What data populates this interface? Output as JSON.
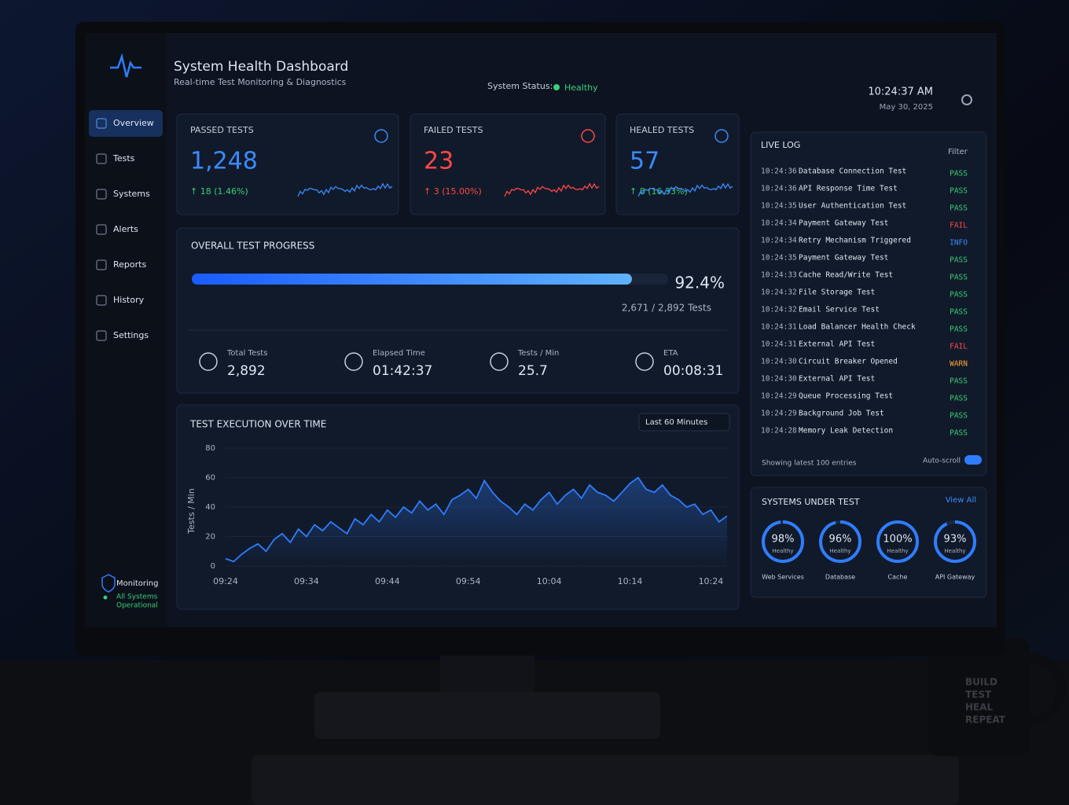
{
  "header": {
    "title": "System Health Dashboard",
    "subtitle": "Real-time Test Monitoring & Diagnostics",
    "status_label": "System Status:",
    "status": "Healthy",
    "time": "10:24:37 AM",
    "date": "May 30, 2025"
  },
  "sidebar": {
    "nav": [
      "Overview",
      "Tests",
      "Systems",
      "Alerts",
      "Reports",
      "History",
      "Settings"
    ],
    "footer_title": "Monitoring",
    "footer_status": [
      "All Systems",
      "Operational"
    ]
  },
  "cards": [
    {
      "title": "PASSED TESTS",
      "value": "1,248",
      "change": "↑ 18 (1.46%)",
      "color": "#3b8bff",
      "change_color": "#3ad07a"
    },
    {
      "title": "FAILED TESTS",
      "value": "23",
      "change": "↑ 3 (15.00%)",
      "color": "#ff4848",
      "change_color": "#ff4848"
    },
    {
      "title": "HEALED TESTS",
      "value": "57",
      "change": "↑ 8 (16.33%)",
      "color": "#3b8bff",
      "change_color": "#3ad07a"
    }
  ],
  "progress": {
    "title": "OVERALL TEST PROGRESS",
    "percent": {
      "value": 92.4,
      "label": "92.4%"
    },
    "detail": "2,671 / 2,892 Tests",
    "stats": [
      {
        "label": "Total Tests",
        "value": "2,892"
      },
      {
        "label": "Elapsed Time",
        "value": "01:42:37"
      },
      {
        "label": "Tests / Min",
        "value": "25.7"
      },
      {
        "label": "ETA",
        "value": "00:08:31"
      }
    ]
  },
  "execution_chart": {
    "type": "line",
    "title": "TEST EXECUTION OVER TIME",
    "range_selector": "Last 60 Minutes",
    "y_label": "Tests / Min",
    "color": "#2f7dff",
    "categories": [
      "09:24",
      null,
      null,
      null,
      null,
      null,
      null,
      null,
      null,
      null,
      "09:34",
      null,
      null,
      null,
      null,
      null,
      null,
      null,
      null,
      null,
      "09:44",
      null,
      null,
      null,
      null,
      null,
      null,
      null,
      null,
      null,
      "09:54",
      null,
      null,
      null,
      null,
      null,
      null,
      null,
      null,
      null,
      "10:04",
      null,
      null,
      null,
      null,
      null,
      null,
      null,
      null,
      null,
      "10:14",
      null,
      null,
      null,
      null,
      null,
      null,
      null,
      null,
      null,
      "10:24",
      null,
      null
    ],
    "values": [
      5,
      3,
      8,
      12,
      15,
      10,
      18,
      22,
      16,
      25,
      20,
      28,
      24,
      30,
      26,
      22,
      32,
      28,
      35,
      30,
      38,
      33,
      40,
      36,
      44,
      38,
      42,
      35,
      45,
      48,
      52,
      46,
      58,
      50,
      44,
      40,
      35,
      42,
      38,
      45,
      50,
      42,
      48,
      52,
      46,
      55,
      50,
      48,
      44,
      50,
      56,
      60,
      52,
      50,
      55,
      48,
      45,
      40,
      42,
      35,
      38,
      30,
      34
    ],
    "ylim": [
      0,
      80
    ],
    "yticks": [
      0,
      20,
      40,
      60,
      80
    ]
  },
  "live_log": {
    "title": "LIVE LOG",
    "filter": "Filter",
    "status_colors": {
      "PASS": "#3ad07a",
      "FAIL": "#ff4848",
      "INFO": "#3b8bff",
      "WARN": "#ffa531"
    },
    "entries": [
      {
        "time": "10:24:36",
        "name": "Database Connection Test",
        "status": "PASS"
      },
      {
        "time": "10:24:36",
        "name": "API Response Time Test",
        "status": "PASS"
      },
      {
        "time": "10:24:35",
        "name": "User Authentication Test",
        "status": "PASS"
      },
      {
        "time": "10:24:34",
        "name": "Payment Gateway Test",
        "status": "FAIL"
      },
      {
        "time": "10:24:34",
        "name": "Retry Mechanism Triggered",
        "status": "INFO"
      },
      {
        "time": "10:24:35",
        "name": "Payment Gateway Test",
        "status": "PASS"
      },
      {
        "time": "10:24:33",
        "name": "Cache Read/Write Test",
        "status": "PASS"
      },
      {
        "time": "10:24:32",
        "name": "File Storage Test",
        "status": "PASS"
      },
      {
        "time": "10:24:32",
        "name": "Email Service Test",
        "status": "PASS"
      },
      {
        "time": "10:24:31",
        "name": "Load Balancer Health Check",
        "status": "PASS"
      },
      {
        "time": "10:24:31",
        "name": "External API Test",
        "status": "FAIL"
      },
      {
        "time": "10:24:30",
        "name": "Circuit Breaker Opened",
        "status": "WARN"
      },
      {
        "time": "10:24:30",
        "name": "External API Test",
        "status": "PASS"
      },
      {
        "time": "10:24:29",
        "name": "Queue Processing Test",
        "status": "PASS"
      },
      {
        "time": "10:24:29",
        "name": "Background Job Test",
        "status": "PASS"
      },
      {
        "time": "10:24:28",
        "name": "Memory Leak Detection",
        "status": "PASS"
      }
    ],
    "footer": "Showing latest 100 entries",
    "auto_scroll": "Auto-scroll"
  },
  "systems": {
    "title": "SYSTEMS UNDER TEST",
    "view_all": "View All",
    "items": [
      {
        "health": {
          "value": 98,
          "label": "98%"
        },
        "state": "Healthy",
        "name": "Web Services"
      },
      {
        "health": {
          "value": 96,
          "label": "96%"
        },
        "state": "Healthy",
        "name": "Database"
      },
      {
        "health": {
          "value": 100,
          "label": "100%"
        },
        "state": "Healthy",
        "name": "Cache"
      },
      {
        "health": {
          "value": 93,
          "label": "93%"
        },
        "state": "Healthy",
        "name": "API Gateway"
      }
    ]
  },
  "mug": [
    "BUILD",
    "TEST",
    "HEAL",
    "REPEAT"
  ]
}
